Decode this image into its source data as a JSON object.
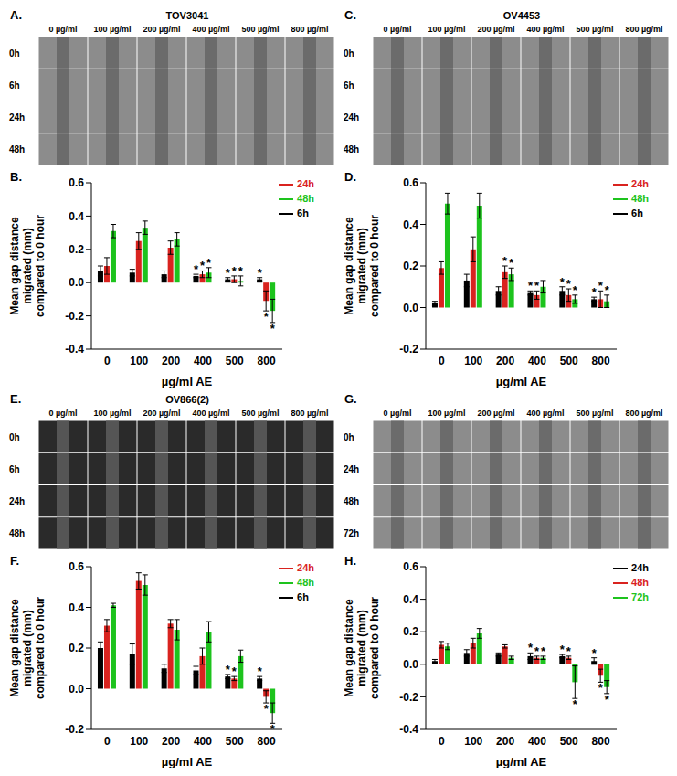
{
  "image_panels": [
    {
      "panel": "A.",
      "title": "TOV3041",
      "columns": [
        "0 µg/ml",
        "100 µg/ml",
        "200 µg/ml",
        "400 µg/ml",
        "500 µg/ml",
        "800 µg/ml"
      ],
      "rows": [
        "0h",
        "6h",
        "24h",
        "48h"
      ]
    },
    {
      "panel": "C.",
      "title": "OV4453",
      "columns": [
        "0 µg/ml",
        "100 µg/ml",
        "200 µg/ml",
        "400 µg/ml",
        "500 µg/ml",
        "800 µg/ml"
      ],
      "rows": [
        "0h",
        "6h",
        "24h",
        "48h"
      ]
    },
    {
      "panel": "E.",
      "title": "OV866(2)",
      "columns": [
        "0 µg/ml",
        "100 µg/ml",
        "200 µg/ml",
        "400 µg/ml",
        "500 µg/ml",
        "800 µg/ml"
      ],
      "rows": [
        "0h",
        "6h",
        "24h",
        "48h"
      ]
    },
    {
      "panel": "G.",
      "columns": [
        "0 µg/ml",
        "100 µg/ml",
        "200 µg/ml",
        "400 µg/ml",
        "500 µg/ml",
        "800 µg/ml"
      ],
      "rows": [
        "0h",
        "24h",
        "48h",
        "72h"
      ]
    }
  ],
  "chart_data": [
    {
      "panel": "B.",
      "type": "bar",
      "x_label": "µg/ml AE",
      "y_label": [
        "Mean gap distance",
        "migrated (mm)",
        "compared to 0 hour"
      ],
      "categories": [
        "0",
        "100",
        "200",
        "400",
        "500",
        "800"
      ],
      "ylim": [
        -0.4,
        0.6
      ],
      "yticks": [
        -0.4,
        -0.2,
        {
          "value": 0,
          "label": "0.0"
        },
        0.2,
        0.4,
        0.6
      ],
      "legend": "upper right",
      "series": [
        {
          "name": "6h",
          "color": "#000000",
          "values": [
            0.07,
            0.06,
            0.05,
            0.04,
            0.02,
            0.02
          ],
          "errors": [
            0.03,
            0.02,
            0.02,
            0.01,
            0.01,
            0.01
          ],
          "significance": [
            null,
            null,
            null,
            "*",
            "*",
            "*"
          ]
        },
        {
          "name": "24h",
          "color": "#d9231f",
          "values": [
            0.1,
            0.25,
            0.21,
            0.05,
            0.02,
            -0.11
          ],
          "errors": [
            0.05,
            0.05,
            0.04,
            0.02,
            0.02,
            0.06
          ],
          "significance": [
            null,
            null,
            null,
            "*",
            "*",
            "*"
          ]
        },
        {
          "name": "48h",
          "color": "#1dc31d",
          "values": [
            0.31,
            0.33,
            0.26,
            0.06,
            0.01,
            -0.17
          ],
          "errors": [
            0.04,
            0.04,
            0.04,
            0.03,
            0.03,
            0.07
          ],
          "significance": [
            null,
            null,
            null,
            "*",
            "*",
            "*"
          ]
        }
      ]
    },
    {
      "panel": "D.",
      "type": "bar",
      "x_label": "µg/ml AE",
      "y_label": [
        "Mean gap distance",
        "migrated (mm)",
        "compared to 0 hour"
      ],
      "categories": [
        "0",
        "100",
        "200",
        "400",
        "500",
        "800"
      ],
      "ylim": [
        -0.2,
        0.6
      ],
      "yticks": [
        -0.2,
        {
          "value": 0,
          "label": "0.0"
        },
        0.2,
        0.4,
        0.6
      ],
      "legend": "upper right",
      "series": [
        {
          "name": "6h",
          "color": "#000000",
          "values": [
            0.02,
            0.13,
            0.08,
            0.07,
            0.08,
            0.04
          ],
          "errors": [
            0.01,
            0.03,
            0.02,
            0.01,
            0.02,
            0.01
          ],
          "significance": [
            null,
            null,
            null,
            "*",
            "*",
            "*"
          ]
        },
        {
          "name": "24h",
          "color": "#d9231f",
          "values": [
            0.19,
            0.28,
            0.17,
            0.06,
            0.06,
            0.04
          ],
          "errors": [
            0.03,
            0.06,
            0.03,
            0.02,
            0.03,
            0.04
          ],
          "significance": [
            null,
            null,
            "*",
            "*",
            "*",
            "*"
          ]
        },
        {
          "name": "48h",
          "color": "#1dc31d",
          "values": [
            0.5,
            0.49,
            0.16,
            0.1,
            0.04,
            0.03
          ],
          "errors": [
            0.05,
            0.06,
            0.03,
            0.03,
            0.02,
            0.03
          ],
          "significance": [
            null,
            null,
            "*",
            null,
            "*",
            "*"
          ]
        }
      ]
    },
    {
      "panel": "F.",
      "type": "bar",
      "x_label": "µg/ml AE",
      "y_label": [
        "Mean gap distance",
        "migrated (mm)",
        "compared to 0 hour"
      ],
      "categories": [
        "0",
        "100",
        "200",
        "400",
        "500",
        "800"
      ],
      "ylim": [
        -0.2,
        0.6
      ],
      "yticks": [
        -0.2,
        {
          "value": 0,
          "label": "0.0"
        },
        0.2,
        0.4,
        0.6
      ],
      "legend": "upper right",
      "series": [
        {
          "name": "6h",
          "color": "#000000",
          "values": [
            0.2,
            0.17,
            0.1,
            0.09,
            0.06,
            0.05
          ],
          "errors": [
            0.03,
            0.05,
            0.02,
            0.02,
            0.01,
            0.01
          ],
          "significance": [
            null,
            null,
            null,
            null,
            "*",
            "*"
          ]
        },
        {
          "name": "24h",
          "color": "#d9231f",
          "values": [
            0.31,
            0.53,
            0.32,
            0.16,
            0.05,
            -0.04
          ],
          "errors": [
            0.03,
            0.04,
            0.02,
            0.04,
            0.01,
            0.03
          ],
          "significance": [
            null,
            null,
            null,
            null,
            "*",
            "*"
          ]
        },
        {
          "name": "48h",
          "color": "#1dc31d",
          "values": [
            0.41,
            0.51,
            0.29,
            0.28,
            0.16,
            -0.12
          ],
          "errors": [
            0.01,
            0.05,
            0.05,
            0.05,
            0.03,
            0.05
          ],
          "significance": [
            null,
            null,
            null,
            null,
            null,
            "*"
          ]
        }
      ]
    },
    {
      "panel": "H.",
      "type": "bar",
      "x_label": "µg/ml AE",
      "y_label": [
        "Mean gap distance",
        "migrated (mm)",
        "compared to 0 hour"
      ],
      "categories": [
        "0",
        "100",
        "200",
        "400",
        "500",
        "800"
      ],
      "ylim": [
        -0.4,
        0.6
      ],
      "yticks": [
        -0.4,
        -0.2,
        {
          "value": 0,
          "label": "0.0"
        },
        0.2,
        0.4,
        0.6
      ],
      "legend": "upper right",
      "series": [
        {
          "name": "24h",
          "color": "#000000",
          "values": [
            0.02,
            0.07,
            0.06,
            0.05,
            0.05,
            0.02
          ],
          "errors": [
            0.01,
            0.02,
            0.01,
            0.02,
            0.01,
            0.02
          ],
          "significance": [
            null,
            null,
            null,
            "*",
            "*",
            "*"
          ]
        },
        {
          "name": "48h",
          "color": "#d9231f",
          "values": [
            0.12,
            0.13,
            0.11,
            0.04,
            0.04,
            -0.07
          ],
          "errors": [
            0.02,
            0.03,
            0.01,
            0.01,
            0.01,
            0.04
          ],
          "significance": [
            null,
            null,
            null,
            "*",
            "*",
            "*"
          ]
        },
        {
          "name": "72h",
          "color": "#1dc31d",
          "values": [
            0.11,
            0.19,
            0.04,
            0.04,
            -0.11,
            -0.14
          ],
          "errors": [
            0.02,
            0.03,
            0.01,
            0.01,
            0.1,
            0.04
          ],
          "significance": [
            null,
            null,
            null,
            "*",
            "*",
            "*"
          ]
        }
      ]
    }
  ]
}
